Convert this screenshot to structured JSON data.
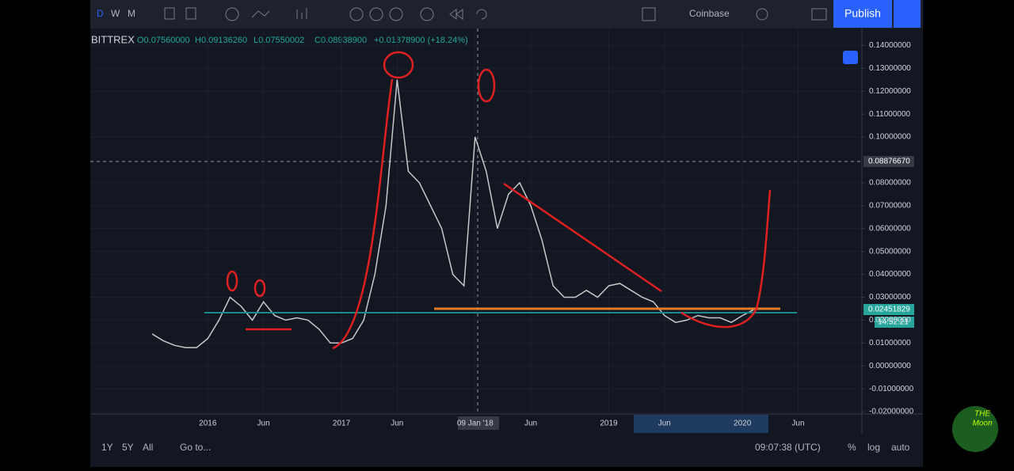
{
  "toolbar": {
    "intervals": [
      "D",
      "W",
      "M"
    ],
    "exchange": "Coinbase",
    "publish": "Publish"
  },
  "legend": {
    "symbol": "BITTREX",
    "open": "O0.07560000",
    "high": "H0.09136260",
    "low": "L0.07550002",
    "close": "C0.08938900",
    "change": "+0.01378900 (+18.24%)"
  },
  "price_labels": {
    "crosshair": "0.08876670",
    "last": "0.02451829",
    "countdown": "14:52:21"
  },
  "bottom_bar": {
    "ranges": [
      "1Y",
      "5Y",
      "All"
    ],
    "goto": "Go to...",
    "clock": "09:07:38 (UTC)",
    "options": [
      "%",
      "log",
      "auto"
    ]
  },
  "logo": {
    "line1": "THE",
    "line2": "Moon"
  },
  "chart_data": {
    "type": "line",
    "color": "#c8c8c8",
    "categories": [
      null,
      null,
      null,
      null,
      null,
      "2016",
      null,
      null,
      null,
      null,
      "Jun",
      null,
      null,
      null,
      null,
      null,
      null,
      "2017",
      null,
      null,
      null,
      null,
      "Jun",
      null,
      null,
      null,
      null,
      null,
      null,
      "09 Jan '18",
      null,
      null,
      null,
      null,
      "Jun",
      null,
      null,
      null,
      null,
      null,
      null,
      "2019",
      null,
      null,
      null,
      null,
      "Jun",
      null,
      null,
      null,
      null,
      null,
      null,
      "2020",
      null,
      null,
      null,
      null,
      "Jun"
    ],
    "values": [
      0.014,
      0.011,
      0.009,
      0.008,
      0.008,
      0.012,
      0.02,
      0.03,
      0.026,
      0.02,
      0.028,
      0.022,
      0.02,
      0.021,
      0.02,
      0.016,
      0.01,
      0.01,
      0.012,
      0.02,
      0.04,
      0.07,
      0.125,
      0.085,
      0.08,
      0.07,
      0.06,
      0.04,
      0.035,
      0.1,
      0.085,
      0.06,
      0.075,
      0.08,
      0.07,
      0.055,
      0.035,
      0.03,
      0.03,
      0.033,
      0.03,
      0.035,
      0.036,
      0.033,
      0.03,
      0.028,
      0.022,
      0.019,
      0.02,
      0.022,
      0.021,
      0.021,
      0.019,
      0.022,
      0.0245,
      null,
      null,
      null,
      null
    ],
    "ylim": [
      -0.021,
      0.146
    ],
    "yticks": [
      {
        "value": -0.02,
        "label": "-0.02000000"
      },
      {
        "value": -0.01,
        "label": "-0.01000000"
      },
      {
        "value": 0,
        "label": "0.00000000"
      },
      {
        "value": 0.01,
        "label": "0.01000000"
      },
      {
        "value": 0.02,
        "label": "0.02000000"
      },
      {
        "value": 0.03,
        "label": "0.03000000"
      },
      {
        "value": 0.04,
        "label": "0.04000000"
      },
      {
        "value": 0.05,
        "label": "0.05000000"
      },
      {
        "value": 0.06,
        "label": "0.06000000"
      },
      {
        "value": 0.07,
        "label": "0.07000000"
      },
      {
        "value": 0.08,
        "label": "0.08000000"
      },
      {
        "value": 0.1,
        "label": "0.10000000"
      },
      {
        "value": 0.11,
        "label": "0.11000000"
      },
      {
        "value": 0.12,
        "label": "0.12000000"
      },
      {
        "value": 0.13,
        "label": "0.13000000"
      },
      {
        "value": 0.14,
        "label": "0.14000000"
      }
    ]
  }
}
